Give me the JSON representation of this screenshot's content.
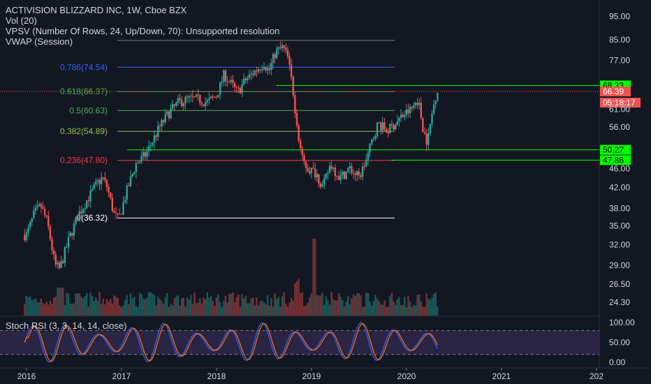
{
  "chart_data": {
    "type": "candlestick",
    "title": "ACTIVISION BLIZZARD INC, 1W, Cboe BZX",
    "indicators": [
      "Vol (20)",
      "VPSV (Number Of Rows, 24, Up/Down, 70): Unsupported resolution",
      "VWAP (Session)"
    ],
    "price_axis_ticks": [
      "95.00",
      "85.00",
      "77.00",
      "68.33",
      "66.39",
      "05:18:17",
      "61.00",
      "56.00",
      "50.27",
      "47.86",
      "46.00",
      "42.00",
      "38.00",
      "35.00",
      "32.00",
      "29.00",
      "26.50",
      "24.30"
    ],
    "price_scale": "log",
    "price_range": [
      23.5,
      100
    ],
    "time_axis_ticks": [
      "2016",
      "2017",
      "2018",
      "2019",
      "2020",
      "2021",
      "202"
    ],
    "fib_levels": [
      {
        "label": "0.786(74.54)",
        "value": 74.54,
        "color": "#2962ff"
      },
      {
        "label": "0.618(66.37)",
        "value": 66.37,
        "color": "#4caf50"
      },
      {
        "label": "0.5(60.63)",
        "value": 60.63,
        "color": "#4caf50"
      },
      {
        "label": "0.382(54.89)",
        "value": 54.89,
        "color": "#8bc34a"
      },
      {
        "label": "0.236(47.80)",
        "value": 47.8,
        "color": "#f23645"
      },
      {
        "label": "0(36.32)",
        "value": 36.32,
        "color": "#ffffff"
      }
    ],
    "fib_top_line": 84.7,
    "horizontal_levels": [
      {
        "label": "68.33",
        "value": 68.33,
        "color": "#00ff00"
      },
      {
        "label": "50.27",
        "value": 50.27,
        "color": "#00ff00"
      },
      {
        "label": "47.86",
        "value": 47.86,
        "color": "#00ff00"
      }
    ],
    "last_price": {
      "label": "66.39",
      "value": 66.39,
      "countdown": "05:18:17",
      "color": "#ef5350"
    },
    "price_anchors": [
      [
        2016.0,
        33.5
      ],
      [
        2016.08,
        37
      ],
      [
        2016.15,
        38.5
      ],
      [
        2016.22,
        35.5
      ],
      [
        2016.3,
        29
      ],
      [
        2016.35,
        28.5
      ],
      [
        2016.45,
        33
      ],
      [
        2016.55,
        37
      ],
      [
        2016.65,
        40
      ],
      [
        2016.75,
        43
      ],
      [
        2016.8,
        44
      ],
      [
        2016.85,
        42
      ],
      [
        2016.92,
        37
      ],
      [
        2016.97,
        36
      ],
      [
        2017.05,
        41
      ],
      [
        2017.15,
        47
      ],
      [
        2017.25,
        49
      ],
      [
        2017.4,
        56
      ],
      [
        2017.5,
        60
      ],
      [
        2017.6,
        63
      ],
      [
        2017.7,
        64
      ],
      [
        2017.8,
        64
      ],
      [
        2017.9,
        63
      ],
      [
        2018.0,
        65
      ],
      [
        2018.08,
        72
      ],
      [
        2018.15,
        69
      ],
      [
        2018.22,
        66
      ],
      [
        2018.3,
        70
      ],
      [
        2018.4,
        73
      ],
      [
        2018.5,
        76
      ],
      [
        2018.55,
        73
      ],
      [
        2018.62,
        80
      ],
      [
        2018.7,
        82
      ],
      [
        2018.75,
        78
      ],
      [
        2018.8,
        68
      ],
      [
        2018.84,
        58
      ],
      [
        2018.9,
        48
      ],
      [
        2018.96,
        46
      ],
      [
        2019.05,
        45
      ],
      [
        2019.12,
        42
      ],
      [
        2019.2,
        47
      ],
      [
        2019.3,
        44
      ],
      [
        2019.4,
        46
      ],
      [
        2019.5,
        44
      ],
      [
        2019.58,
        48
      ],
      [
        2019.63,
        52
      ],
      [
        2019.7,
        57
      ],
      [
        2019.8,
        55
      ],
      [
        2019.88,
        57
      ],
      [
        2019.95,
        59
      ],
      [
        2020.05,
        61
      ],
      [
        2020.12,
        64
      ],
      [
        2020.18,
        55
      ],
      [
        2020.22,
        52
      ],
      [
        2020.27,
        60
      ],
      [
        2020.32,
        67
      ]
    ],
    "volume_scale": "relative",
    "stoch_rsi": {
      "label": "Stoch RSI (3, 3, 14, 14, close)",
      "range": [
        0,
        100
      ],
      "ticks": [
        "100.00",
        "50.00",
        "0.00"
      ],
      "bands": [
        80,
        20
      ]
    }
  }
}
